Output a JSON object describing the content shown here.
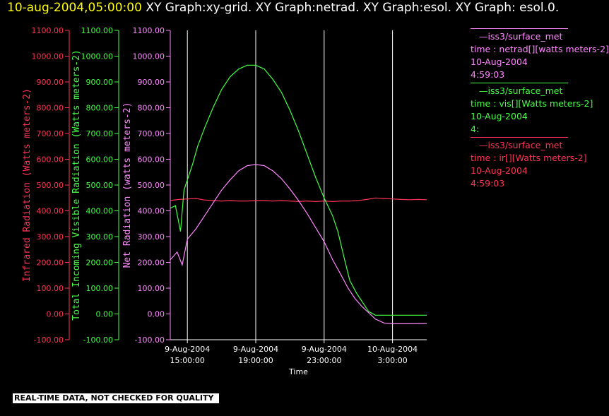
{
  "header": {
    "timestamp": "10-aug-2004,05:00:00",
    "title": "XY Graph:xy-grid.  XY Graph:netrad.  XY Graph:esol.  XY Graph: esol.0."
  },
  "footer_note": "REAL-TIME DATA, NOT CHECKED FOR QUALITY",
  "legend": [
    {
      "name": "—iss3/surface_met",
      "line2": "time : netrad[][watts meters-2]",
      "line3": "10-Aug-2004",
      "line4": "4:59:03",
      "color": "#ff88ff"
    },
    {
      "name": "—iss3/surface_met",
      "line2": "time : vis[][Watts meters-2]",
      "line3": "10-Aug-2004",
      "line4": "4:",
      "color": "#44ff44"
    },
    {
      "name": "—iss3/surface_met",
      "line2": "time : ir[][Watts meters-2]",
      "line3": "10-Aug-2004",
      "line4": "4:59:03",
      "color": "#ff3355"
    }
  ],
  "chart_data": {
    "type": "line",
    "xlabel": "Time",
    "x_ticks": [
      {
        "hours": 15,
        "line1": "9-Aug-2004",
        "line2": "15:00:00"
      },
      {
        "hours": 19,
        "line1": "9-Aug-2004",
        "line2": "19:00:00"
      },
      {
        "hours": 23,
        "line1": "9-Aug-2004",
        "line2": "23:00:00"
      },
      {
        "hours": 27,
        "line1": "10-Aug-2004",
        "line2": "3:00:00"
      }
    ],
    "x_unit": "hours after 9-Aug-2004 00:00",
    "xlim": [
      14.0,
      29.0
    ],
    "grid": "vertical lines at x ticks",
    "axes": [
      {
        "id": "ir",
        "label": "Infrared Radiation (Watts meters-2)",
        "color": "#ff3355",
        "ylim": [
          -100,
          1100
        ],
        "ticks": [
          "-100.00",
          "0.00",
          "100.00",
          "200.00",
          "300.00",
          "400.00",
          "500.00",
          "600.00",
          "700.00",
          "800.00",
          "900.00",
          "1000.00",
          "1100.00"
        ]
      },
      {
        "id": "vis",
        "label": "Total Incoming Visible Radiation (Watts meters-2)",
        "color": "#44ff44",
        "ylim": [
          -100,
          1100
        ],
        "ticks": [
          "-100.00",
          "0.00",
          "100.00",
          "200.00",
          "300.00",
          "400.00",
          "500.00",
          "600.00",
          "700.00",
          "800.00",
          "900.00",
          "1000.00",
          "1100.00"
        ]
      },
      {
        "id": "net",
        "label": "Net Radiation (watts meters-2)",
        "color": "#ff88ff",
        "ylim": [
          -100,
          1100
        ],
        "ticks": [
          "-100.00",
          "0.00",
          "100.00",
          "200.00",
          "300.00",
          "400.00",
          "500.00",
          "600.00",
          "700.00",
          "800.00",
          "900.00",
          "1000.00",
          "1100.00"
        ]
      }
    ],
    "series": [
      {
        "name": "ir",
        "color": "#ff3355",
        "x": [
          14.0,
          14.5,
          15.0,
          15.5,
          16.0,
          16.5,
          17.0,
          17.5,
          18.0,
          18.5,
          19.0,
          19.5,
          20.0,
          20.5,
          21.0,
          21.5,
          22.0,
          22.5,
          23.0,
          23.5,
          24.0,
          24.5,
          25.0,
          25.5,
          26.0,
          26.5,
          27.0,
          27.5,
          28.0,
          28.5,
          29.0
        ],
        "y": [
          440,
          444,
          446,
          448,
          442,
          440,
          438,
          440,
          438,
          438,
          440,
          440,
          438,
          440,
          438,
          436,
          438,
          436,
          438,
          436,
          438,
          438,
          440,
          444,
          450,
          448,
          446,
          444,
          443,
          444,
          443
        ]
      },
      {
        "name": "vis",
        "color": "#44ff44",
        "x": [
          14.0,
          14.3,
          14.6,
          14.8,
          15.0,
          15.3,
          15.6,
          16.0,
          16.5,
          17.0,
          17.5,
          18.0,
          18.5,
          19.0,
          19.5,
          20.0,
          20.5,
          21.0,
          21.5,
          22.0,
          22.5,
          23.0,
          23.5,
          23.8,
          24.2,
          24.5,
          24.9,
          25.3,
          25.6,
          26.0,
          26.5,
          27.0,
          28.0,
          29.0
        ],
        "y": [
          410,
          420,
          320,
          480,
          520,
          580,
          650,
          720,
          800,
          870,
          920,
          950,
          965,
          965,
          950,
          910,
          860,
          790,
          710,
          620,
          530,
          450,
          380,
          320,
          210,
          130,
          80,
          40,
          10,
          -5,
          -5,
          -5,
          -5,
          -5
        ]
      },
      {
        "name": "net",
        "color": "#ff88ff",
        "x": [
          14.0,
          14.4,
          14.7,
          15.0,
          15.5,
          16.0,
          16.5,
          17.0,
          17.5,
          18.0,
          18.5,
          19.0,
          19.5,
          20.0,
          20.5,
          21.0,
          21.5,
          22.0,
          22.5,
          23.0,
          23.5,
          24.0,
          24.4,
          24.8,
          25.2,
          25.6,
          26.0,
          26.5,
          27.0,
          28.0,
          29.0
        ],
        "y": [
          210,
          240,
          190,
          290,
          330,
          380,
          430,
          480,
          520,
          555,
          575,
          580,
          575,
          555,
          525,
          485,
          440,
          390,
          335,
          280,
          210,
          150,
          100,
          60,
          30,
          5,
          -20,
          -35,
          -38,
          -38,
          -37
        ]
      }
    ]
  }
}
